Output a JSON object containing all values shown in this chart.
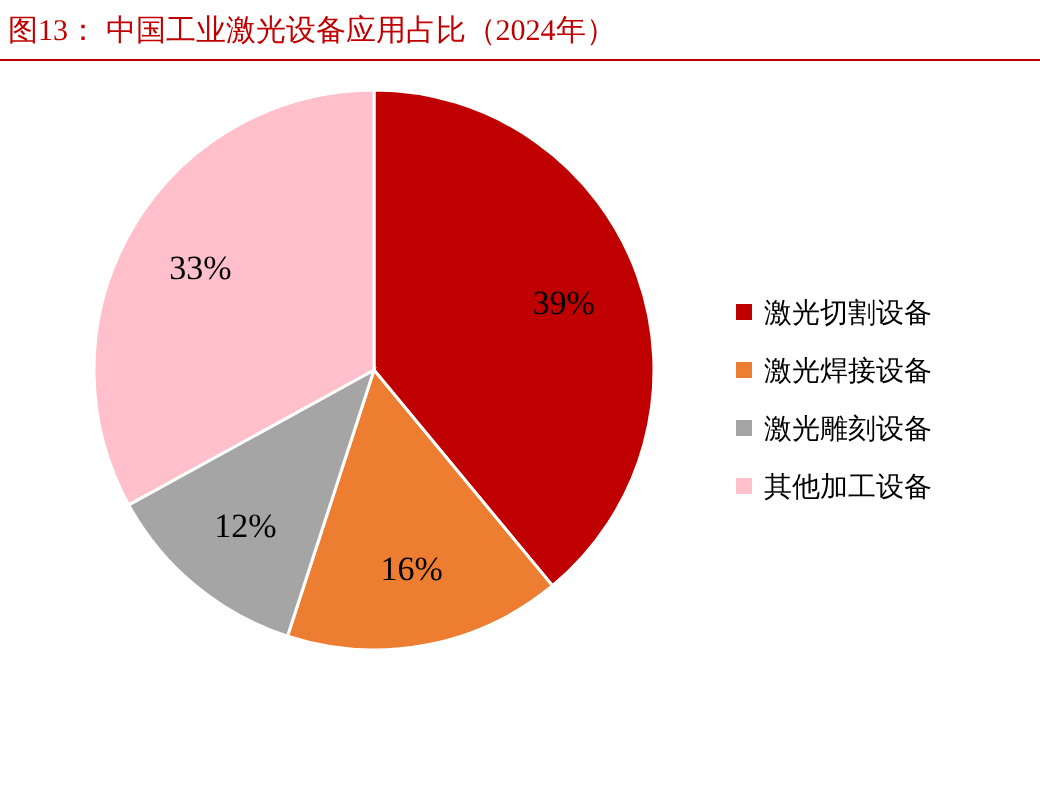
{
  "chart_data": {
    "type": "pie",
    "title": "图13：  中国工业激光设备应用占比（2024年）",
    "categories": [
      "激光切割设备",
      "激光焊接设备",
      "激光雕刻设备",
      "其他加工设备"
    ],
    "values": [
      39,
      16,
      12,
      33
    ],
    "value_labels": [
      "39%",
      "16%",
      "12%",
      "33%"
    ],
    "colors": [
      "#c00000",
      "#ed7d31",
      "#a5a5a5",
      "#ffc0cb"
    ],
    "legend": "right"
  }
}
